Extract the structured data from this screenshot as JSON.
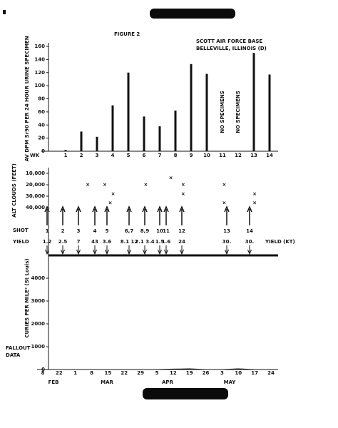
{
  "figure_label": "FIGURE 2",
  "header": [
    "SCOTT AIR FORCE BASE",
    "BELLEVILLE, ILLINOIS (D)"
  ],
  "chart_data": [
    {
      "type": "bar",
      "y_label": "AV DPM Sr90 PER 24 HOUR URINE SPECIMEN",
      "x_label": "WK",
      "categories": [
        "1",
        "2",
        "3",
        "4",
        "5",
        "6",
        "7",
        "8",
        "9",
        "10",
        "11",
        "12",
        "13",
        "14"
      ],
      "values": [
        2,
        30,
        22,
        70,
        120,
        53,
        38,
        62,
        133,
        118,
        null,
        null,
        150,
        117
      ],
      "annotations": [
        "NO SPECIMENS",
        "NO SPECIMENS"
      ],
      "color": "#111111",
      "ylim": [
        0,
        160
      ],
      "yticks": [
        0,
        20,
        40,
        60,
        80,
        100,
        120,
        140,
        160
      ]
    },
    {
      "type": "scatter",
      "y_label": "ALT CLOUDS (FEET)",
      "x": [
        2.54,
        3.63,
        4.16,
        3.98,
        6.26,
        7.87,
        8.66,
        8.66,
        11.3,
        11.3,
        13.25,
        13.25
      ],
      "values": [
        20000,
        20000,
        28000,
        36000,
        20000,
        14000,
        20000,
        28000,
        20000,
        36000,
        28000,
        36000
      ],
      "marker": "x",
      "xlim": [
        -0.35,
        14.3
      ],
      "ylim": [
        45000,
        5000
      ],
      "yticks": [
        {
          "value": 10000,
          "label": "10,000"
        },
        {
          "value": 20000,
          "label": "20,000"
        },
        {
          "value": 30000,
          "label": "30,000"
        },
        {
          "value": 40000,
          "label": "40,000"
        }
      ],
      "shot_title": "SHOT",
      "yield_title": "YIELD",
      "yield_unit": "YIELD (KT)",
      "shots": [
        "1",
        "2",
        "3",
        "4",
        "5",
        "6,7",
        "8,9",
        "10",
        "11",
        "12",
        "13",
        "14"
      ],
      "yields": [
        "1.2",
        "2.5",
        "7",
        "43",
        "3.6",
        "8.1 12",
        "2.1 3.4",
        "1.5",
        "1.6",
        "24",
        "30.",
        "30."
      ]
    },
    {
      "type": "line",
      "y_label": "CURIES PER MILE² (St Louis)",
      "side_label": [
        "FALLOUT",
        "DATA"
      ],
      "categories": [
        "8",
        "22",
        "1",
        "8",
        "15",
        "22",
        "29",
        "5",
        "12",
        "19",
        "26",
        "3",
        "10",
        "17",
        "24"
      ],
      "months": [
        "FEB",
        "MAR",
        "APR",
        "MAY"
      ],
      "values": [
        0,
        0,
        0,
        0,
        0,
        0,
        0,
        0,
        20,
        30,
        0,
        0,
        30,
        0,
        0
      ],
      "color": "#111111",
      "ylim": [
        0,
        5000
      ],
      "yticks": [
        0,
        1000,
        2000,
        3000,
        4000
      ]
    }
  ]
}
